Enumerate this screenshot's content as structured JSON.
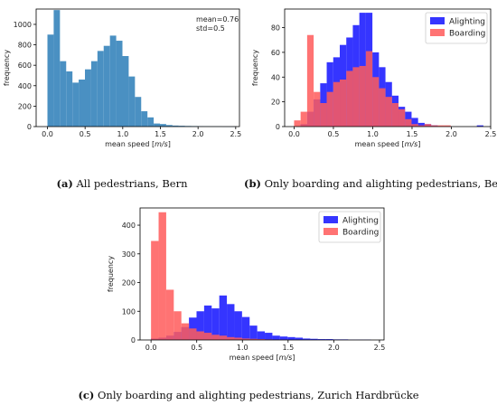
{
  "chart_data": [
    {
      "type": "bar",
      "caption": {
        "letter": "(a)",
        "text": " All pedestrians, Bern"
      },
      "xlabel_prefix": "mean speed [",
      "xlabel_unit": "m/s",
      "xlabel_suffix": "]",
      "ylabel": "frequency",
      "xlim": [
        -0.15,
        2.55
      ],
      "ylim": [
        0,
        1150
      ],
      "xticks": [
        0.0,
        0.5,
        1.0,
        1.5,
        2.0,
        2.5
      ],
      "xtick_labels": [
        "0.0",
        "0.5",
        "1.0",
        "1.5",
        "2.0",
        "2.5"
      ],
      "yticks": [
        0,
        200,
        400,
        600,
        800,
        1000
      ],
      "ytick_labels": [
        "0",
        "200",
        "400",
        "600",
        "800",
        "1000"
      ],
      "annotation": [
        "mean=0.76",
        "std=0.5"
      ],
      "bin_start": 0.0,
      "bin_width": 0.083,
      "series": [
        {
          "name": "",
          "color": "#4a90c2",
          "values": [
            900,
            1140,
            640,
            540,
            430,
            460,
            560,
            640,
            740,
            790,
            890,
            840,
            690,
            490,
            290,
            150,
            90,
            30,
            25,
            15,
            10,
            8,
            6,
            5,
            4,
            3,
            2,
            2,
            1,
            1
          ]
        }
      ]
    },
    {
      "type": "bar",
      "caption": {
        "letter": "(b)",
        "text": " Only boarding and alighting pedestrians, Bern"
      },
      "xlabel_prefix": "mean speed [",
      "xlabel_unit": "m/s",
      "xlabel_suffix": "]",
      "ylabel": "frequency",
      "xlim": [
        -0.12,
        2.5
      ],
      "ylim": [
        0,
        95
      ],
      "xticks": [
        0.0,
        0.5,
        1.0,
        1.5,
        2.0,
        2.5
      ],
      "xtick_labels": [
        "0.0",
        "0.5",
        "1.0",
        "1.5",
        "2.0",
        "2.5"
      ],
      "yticks": [
        0,
        20,
        40,
        60,
        80
      ],
      "ytick_labels": [
        "0",
        "20",
        "40",
        "60",
        "80"
      ],
      "legend_position": "top-right",
      "bin_start": 0.0,
      "bin_width": 0.083,
      "series": [
        {
          "name": "Alighting",
          "color": "#1f1fff",
          "opacity": 0.9,
          "values": [
            0,
            2,
            12,
            22,
            35,
            52,
            56,
            66,
            72,
            82,
            92,
            92,
            60,
            48,
            36,
            25,
            16,
            12,
            7,
            3,
            2,
            1,
            0,
            0,
            0,
            0,
            0,
            0,
            1,
            0
          ]
        },
        {
          "name": "Boarding",
          "color": "#ff5a5a",
          "opacity": 0.85,
          "values": [
            5,
            12,
            74,
            28,
            19,
            28,
            36,
            38,
            45,
            48,
            49,
            61,
            40,
            31,
            24,
            19,
            14,
            6,
            2,
            1,
            2,
            1,
            1,
            1,
            0,
            0,
            0,
            0,
            0,
            0
          ]
        }
      ]
    },
    {
      "type": "bar",
      "caption": {
        "letter": "(c)",
        "text": " Only boarding and alighting pedestrians, Zurich Hardbrücke"
      },
      "xlabel_prefix": "mean speed [",
      "xlabel_unit": "m/s",
      "xlabel_suffix": "]",
      "ylabel": "frequency",
      "xlim": [
        -0.12,
        2.55
      ],
      "ylim": [
        0,
        460
      ],
      "xticks": [
        0.0,
        0.5,
        1.0,
        1.5,
        2.0,
        2.5
      ],
      "xtick_labels": [
        "0.0",
        "0.5",
        "1.0",
        "1.5",
        "2.0",
        "2.5"
      ],
      "yticks": [
        0,
        100,
        200,
        300,
        400
      ],
      "ytick_labels": [
        "0",
        "100",
        "200",
        "300",
        "400"
      ],
      "legend_position": "top-right",
      "bin_start": 0.0,
      "bin_width": 0.083,
      "series": [
        {
          "name": "Alighting",
          "color": "#1f1fff",
          "opacity": 0.9,
          "values": [
            5,
            8,
            15,
            28,
            45,
            78,
            100,
            120,
            110,
            155,
            125,
            100,
            80,
            50,
            30,
            25,
            15,
            12,
            10,
            8,
            5,
            4,
            3,
            3,
            2,
            2,
            1,
            1,
            1,
            0
          ]
        },
        {
          "name": "Boarding",
          "color": "#ff5a5a",
          "opacity": 0.85,
          "values": [
            345,
            445,
            175,
            100,
            58,
            40,
            30,
            25,
            18,
            15,
            10,
            8,
            5,
            4,
            3,
            2,
            1,
            1,
            0,
            0,
            0,
            0,
            0,
            0,
            0,
            0,
            0,
            0,
            0,
            0
          ]
        }
      ]
    }
  ]
}
